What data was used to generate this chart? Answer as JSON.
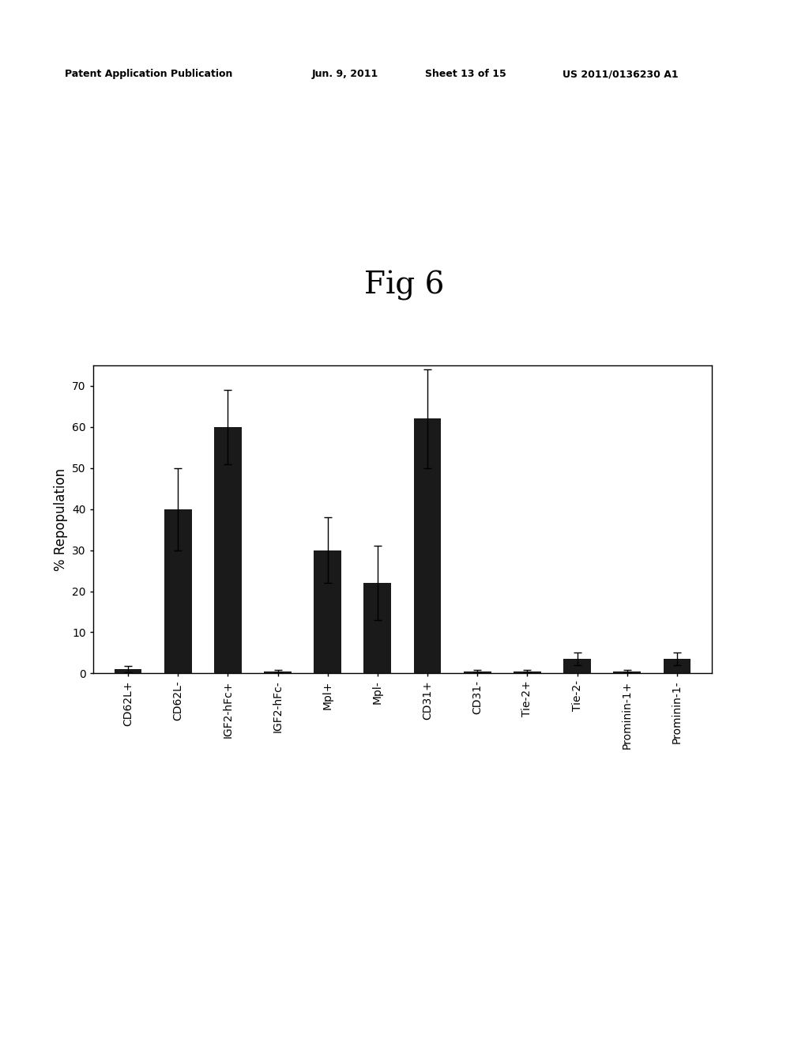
{
  "title": "Fig 6",
  "ylabel": "% Repopulation",
  "ylim": [
    0,
    75
  ],
  "yticks": [
    0,
    10,
    20,
    30,
    40,
    50,
    60,
    70
  ],
  "categories": [
    "CD62L+",
    "CD62L-",
    "IGF2-hFc+",
    "IGF2-hFc-",
    "Mpl+",
    "Mpl-",
    "CD31+",
    "CD31-",
    "Tie-2+",
    "Tie-2-",
    "Prominin-1+",
    "Prominin-1-"
  ],
  "values": [
    1.0,
    40.0,
    60.0,
    0.5,
    30.0,
    22.0,
    62.0,
    0.5,
    0.5,
    3.5,
    0.5,
    3.5
  ],
  "errors": [
    0.8,
    10.0,
    9.0,
    0.3,
    8.0,
    9.0,
    12.0,
    0.3,
    0.3,
    1.5,
    0.3,
    1.5
  ],
  "bar_color": "#1a1a1a",
  "background_color": "#ffffff",
  "fig_title_fontsize": 28,
  "axis_label_fontsize": 12,
  "tick_label_fontsize": 10,
  "header_left": "Patent Application Publication",
  "header_mid1": "Jun. 9, 2011",
  "header_mid2": "Sheet 13 of 15",
  "header_right": "US 2011/0136230 A1"
}
